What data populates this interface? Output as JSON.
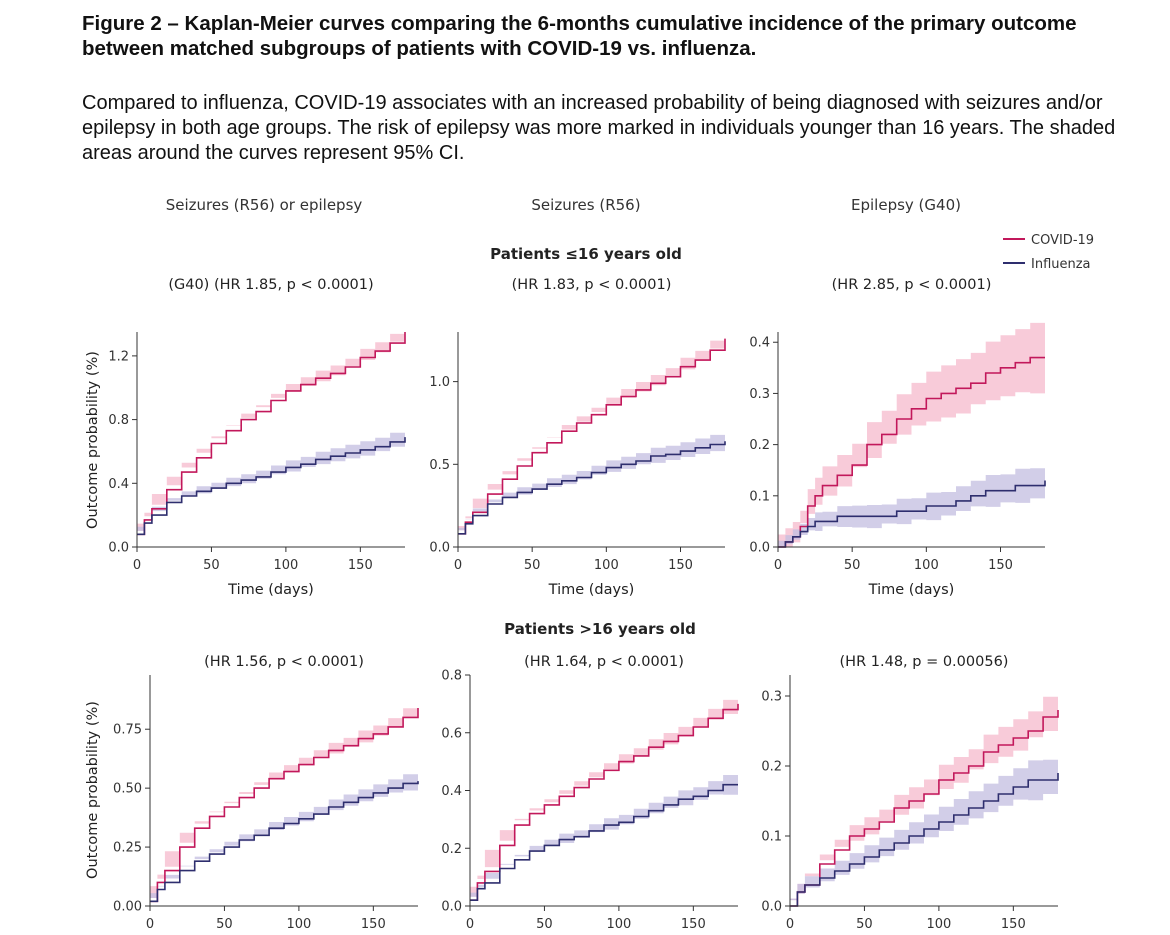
{
  "figure": {
    "title": "Figure 2 – Kaplan-Meier curves comparing the 6-months cumulative incidence of the primary outcome between matched subgroups of patients with COVID-19 vs. influenza.",
    "description": "Compared to influenza, COVID-19 associates with an increased probability of being diagnosed with seizures and/or epilepsy in both age groups. The risk of epilepsy was more marked in individuals younger than 16 years. The shaded areas around the curves represent 95% CI."
  },
  "column_titles": [
    "Seizures (R56) or epilepsy",
    "Seizures (R56)",
    "Epilepsy (G40)"
  ],
  "row_titles": [
    "Patients ≤16 years old",
    "Patients >16 years old"
  ],
  "legend": {
    "position": "top-right",
    "items": [
      {
        "label": "COVID-19",
        "color": "#c2185b"
      },
      {
        "label": "Influenza",
        "color": "#2e2e6e"
      }
    ]
  },
  "colors": {
    "covid_line": "#c2185b",
    "covid_band": "#f5b9cc",
    "flu_line": "#2e2e6e",
    "flu_band": "#c3bde0",
    "axis": "#333333"
  },
  "chart_data": [
    {
      "type": "line",
      "panel": "≤16 years — seizures or epilepsy",
      "annotation": "(G40) (HR 1.85, p < 0.0001)",
      "ylabel": "Outcome probability (%)",
      "xlabel": "Time (days)",
      "xlim": [
        0,
        180
      ],
      "ylim": [
        0,
        1.35
      ],
      "xticks": [
        0,
        50,
        100,
        150
      ],
      "yticks": [
        0.0,
        0.4,
        0.8,
        1.2
      ],
      "ytick_labels": [
        "0.0",
        "0.4",
        "0.8",
        "1.2"
      ],
      "series": [
        {
          "name": "COVID-19",
          "x": [
            0,
            5,
            10,
            20,
            30,
            40,
            50,
            60,
            70,
            80,
            90,
            100,
            110,
            120,
            130,
            140,
            150,
            160,
            170,
            180
          ],
          "y": [
            0.08,
            0.17,
            0.24,
            0.36,
            0.47,
            0.56,
            0.65,
            0.73,
            0.8,
            0.85,
            0.92,
            0.98,
            1.02,
            1.06,
            1.09,
            1.13,
            1.19,
            1.23,
            1.28,
            1.35
          ],
          "ci": 0.06
        },
        {
          "name": "Influenza",
          "x": [
            0,
            5,
            10,
            20,
            30,
            40,
            50,
            60,
            70,
            80,
            90,
            100,
            110,
            120,
            130,
            140,
            150,
            160,
            170,
            180
          ],
          "y": [
            0.08,
            0.15,
            0.2,
            0.28,
            0.32,
            0.35,
            0.37,
            0.4,
            0.42,
            0.44,
            0.47,
            0.5,
            0.52,
            0.55,
            0.57,
            0.59,
            0.61,
            0.63,
            0.66,
            0.69
          ],
          "ci": 0.06
        }
      ]
    },
    {
      "type": "line",
      "panel": "≤16 years — seizures",
      "annotation": "(HR 1.83, p < 0.0001)",
      "ylabel": "",
      "xlabel": "Time (days)",
      "xlim": [
        0,
        180
      ],
      "ylim": [
        0,
        1.3
      ],
      "xticks": [
        0,
        50,
        100,
        150
      ],
      "yticks": [
        0.0,
        0.5,
        1.0
      ],
      "ytick_labels": [
        "0.0",
        "0.5",
        "1.0"
      ],
      "series": [
        {
          "name": "COVID-19",
          "x": [
            0,
            5,
            10,
            20,
            30,
            40,
            50,
            60,
            70,
            80,
            90,
            100,
            110,
            120,
            130,
            140,
            150,
            160,
            170,
            180
          ],
          "y": [
            0.08,
            0.15,
            0.21,
            0.32,
            0.41,
            0.49,
            0.57,
            0.63,
            0.7,
            0.75,
            0.8,
            0.86,
            0.91,
            0.95,
            0.99,
            1.03,
            1.09,
            1.13,
            1.19,
            1.26
          ],
          "ci": 0.06
        },
        {
          "name": "Influenza",
          "x": [
            0,
            5,
            10,
            20,
            30,
            40,
            50,
            60,
            70,
            80,
            90,
            100,
            110,
            120,
            130,
            140,
            150,
            160,
            170,
            180
          ],
          "y": [
            0.08,
            0.14,
            0.19,
            0.26,
            0.3,
            0.33,
            0.35,
            0.38,
            0.4,
            0.42,
            0.45,
            0.48,
            0.5,
            0.52,
            0.55,
            0.56,
            0.58,
            0.6,
            0.62,
            0.64
          ],
          "ci": 0.06
        }
      ]
    },
    {
      "type": "line",
      "panel": "≤16 years — epilepsy",
      "annotation": "(HR 2.85, p < 0.0001)",
      "ylabel": "",
      "xlabel": "Time (days)",
      "xlim": [
        0,
        180
      ],
      "ylim": [
        0,
        0.42
      ],
      "xticks": [
        0,
        50,
        100,
        150
      ],
      "yticks": [
        0.0,
        0.1,
        0.2,
        0.3,
        0.4
      ],
      "ytick_labels": [
        "0.0",
        "0.1",
        "0.2",
        "0.3",
        "0.4"
      ],
      "series": [
        {
          "name": "COVID-19",
          "x": [
            0,
            5,
            10,
            15,
            20,
            25,
            30,
            40,
            50,
            60,
            70,
            80,
            90,
            100,
            110,
            120,
            130,
            140,
            150,
            160,
            170,
            180
          ],
          "y": [
            0,
            0.01,
            0.02,
            0.04,
            0.08,
            0.1,
            0.12,
            0.14,
            0.16,
            0.2,
            0.22,
            0.25,
            0.27,
            0.29,
            0.3,
            0.31,
            0.32,
            0.34,
            0.35,
            0.36,
            0.37,
            0.37
          ],
          "ci": 0.07
        },
        {
          "name": "Influenza",
          "x": [
            0,
            5,
            10,
            15,
            20,
            25,
            30,
            40,
            50,
            60,
            70,
            80,
            90,
            100,
            110,
            120,
            130,
            140,
            150,
            160,
            170,
            180
          ],
          "y": [
            0,
            0.01,
            0.02,
            0.03,
            0.04,
            0.05,
            0.05,
            0.06,
            0.06,
            0.06,
            0.06,
            0.07,
            0.07,
            0.08,
            0.08,
            0.09,
            0.1,
            0.11,
            0.11,
            0.12,
            0.12,
            0.13
          ],
          "ci": 0.035
        }
      ]
    },
    {
      "type": "line",
      "panel": ">16 years — seizures or epilepsy",
      "annotation": "(HR 1.56, p < 0.0001)",
      "ylabel": "Outcome probability (%)",
      "xlabel": "",
      "xlim": [
        0,
        180
      ],
      "ylim": [
        0,
        0.98
      ],
      "xticks": [
        0,
        50,
        100,
        150
      ],
      "yticks": [
        0.0,
        0.25,
        0.5,
        0.75
      ],
      "ytick_labels": [
        "0.00",
        "0.25",
        "0.50",
        "0.75"
      ],
      "series": [
        {
          "name": "COVID-19",
          "x": [
            0,
            5,
            10,
            20,
            30,
            40,
            50,
            60,
            70,
            80,
            90,
            100,
            110,
            120,
            130,
            140,
            150,
            160,
            170,
            180
          ],
          "y": [
            0.02,
            0.1,
            0.15,
            0.25,
            0.33,
            0.38,
            0.42,
            0.46,
            0.5,
            0.54,
            0.57,
            0.6,
            0.63,
            0.66,
            0.68,
            0.71,
            0.73,
            0.76,
            0.8,
            0.84
          ],
          "ci": 0.04
        },
        {
          "name": "Influenza",
          "x": [
            0,
            5,
            10,
            20,
            30,
            40,
            50,
            60,
            70,
            80,
            90,
            100,
            110,
            120,
            130,
            140,
            150,
            160,
            170,
            180
          ],
          "y": [
            0.02,
            0.07,
            0.1,
            0.15,
            0.19,
            0.22,
            0.25,
            0.28,
            0.3,
            0.33,
            0.35,
            0.37,
            0.39,
            0.42,
            0.44,
            0.46,
            0.48,
            0.5,
            0.52,
            0.53
          ],
          "ci": 0.04
        }
      ]
    },
    {
      "type": "line",
      "panel": ">16 years — seizures",
      "annotation": "(HR 1.64, p < 0.0001)",
      "ylabel": "",
      "xlabel": "",
      "xlim": [
        0,
        180
      ],
      "ylim": [
        0,
        0.8
      ],
      "xticks": [
        0,
        50,
        100,
        150
      ],
      "yticks": [
        0.0,
        0.2,
        0.4,
        0.6,
        0.8
      ],
      "ytick_labels": [
        "0.0",
        "0.2",
        "0.4",
        "0.6",
        "0.8"
      ],
      "series": [
        {
          "name": "COVID-19",
          "x": [
            0,
            5,
            10,
            20,
            30,
            40,
            50,
            60,
            70,
            80,
            90,
            100,
            110,
            120,
            130,
            140,
            150,
            160,
            170,
            180
          ],
          "y": [
            0.02,
            0.08,
            0.12,
            0.21,
            0.28,
            0.32,
            0.35,
            0.38,
            0.41,
            0.44,
            0.47,
            0.5,
            0.52,
            0.55,
            0.57,
            0.59,
            0.62,
            0.65,
            0.68,
            0.7
          ],
          "ci": 0.035
        },
        {
          "name": "Influenza",
          "x": [
            0,
            5,
            10,
            20,
            30,
            40,
            50,
            60,
            70,
            80,
            90,
            100,
            110,
            120,
            130,
            140,
            150,
            160,
            170,
            180
          ],
          "y": [
            0.02,
            0.06,
            0.08,
            0.13,
            0.16,
            0.19,
            0.21,
            0.23,
            0.24,
            0.26,
            0.28,
            0.29,
            0.31,
            0.33,
            0.35,
            0.37,
            0.38,
            0.4,
            0.42,
            0.42
          ],
          "ci": 0.035
        }
      ]
    },
    {
      "type": "line",
      "panel": ">16 years — epilepsy",
      "annotation": "(HR 1.48, p = 0.00056)",
      "ylabel": "",
      "xlabel": "",
      "xlim": [
        0,
        180
      ],
      "ylim": [
        0,
        0.33
      ],
      "xticks": [
        0,
        50,
        100,
        150
      ],
      "yticks": [
        0.0,
        0.1,
        0.2,
        0.3
      ],
      "ytick_labels": [
        "0.0",
        "0.1",
        "0.2",
        "0.3"
      ],
      "series": [
        {
          "name": "COVID-19",
          "x": [
            0,
            5,
            10,
            20,
            30,
            40,
            50,
            60,
            70,
            80,
            90,
            100,
            110,
            120,
            130,
            140,
            150,
            160,
            170,
            180
          ],
          "y": [
            0,
            0.02,
            0.03,
            0.06,
            0.08,
            0.1,
            0.11,
            0.12,
            0.14,
            0.15,
            0.16,
            0.18,
            0.19,
            0.2,
            0.22,
            0.23,
            0.24,
            0.25,
            0.27,
            0.28
          ],
          "ci": 0.03
        },
        {
          "name": "Influenza",
          "x": [
            0,
            5,
            10,
            20,
            30,
            40,
            50,
            60,
            70,
            80,
            90,
            100,
            110,
            120,
            130,
            140,
            150,
            160,
            170,
            180
          ],
          "y": [
            0,
            0.02,
            0.03,
            0.04,
            0.05,
            0.06,
            0.07,
            0.08,
            0.09,
            0.1,
            0.11,
            0.12,
            0.13,
            0.14,
            0.15,
            0.16,
            0.17,
            0.18,
            0.18,
            0.19
          ],
          "ci": 0.03
        }
      ]
    }
  ]
}
